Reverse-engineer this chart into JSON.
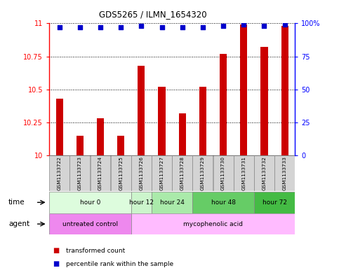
{
  "title": "GDS5265 / ILMN_1654320",
  "samples": [
    "GSM1133722",
    "GSM1133723",
    "GSM1133724",
    "GSM1133725",
    "GSM1133726",
    "GSM1133727",
    "GSM1133728",
    "GSM1133729",
    "GSM1133730",
    "GSM1133731",
    "GSM1133732",
    "GSM1133733"
  ],
  "bar_values": [
    10.43,
    10.15,
    10.28,
    10.15,
    10.68,
    10.52,
    10.32,
    10.52,
    10.77,
    10.99,
    10.82,
    10.98
  ],
  "percentile_values": [
    97,
    97,
    97,
    97,
    98,
    97,
    97,
    97,
    98,
    99,
    98,
    99
  ],
  "bar_color": "#cc0000",
  "percentile_color": "#0000cc",
  "ylim_left": [
    10,
    11
  ],
  "ylim_right": [
    0,
    100
  ],
  "yticks_left": [
    10,
    10.25,
    10.5,
    10.75,
    11
  ],
  "yticks_right": [
    0,
    25,
    50,
    75,
    100
  ],
  "time_groups": [
    {
      "label": "hour 0",
      "start": 0,
      "end": 3,
      "color": "#ddfcdd"
    },
    {
      "label": "hour 12",
      "start": 4,
      "end": 4,
      "color": "#ccf5cc"
    },
    {
      "label": "hour 24",
      "start": 5,
      "end": 6,
      "color": "#aaeaaa"
    },
    {
      "label": "hour 48",
      "start": 7,
      "end": 9,
      "color": "#66cc66"
    },
    {
      "label": "hour 72",
      "start": 10,
      "end": 11,
      "color": "#44bb44"
    }
  ],
  "agent_groups": [
    {
      "label": "untreated control",
      "start": 0,
      "end": 3,
      "color": "#ee88ee"
    },
    {
      "label": "mycophenolic acid",
      "start": 4,
      "end": 11,
      "color": "#ffbbff"
    }
  ],
  "legend_items": [
    {
      "label": "transformed count",
      "color": "#cc0000"
    },
    {
      "label": "percentile rank within the sample",
      "color": "#0000cc"
    }
  ],
  "background_color": "#ffffff"
}
